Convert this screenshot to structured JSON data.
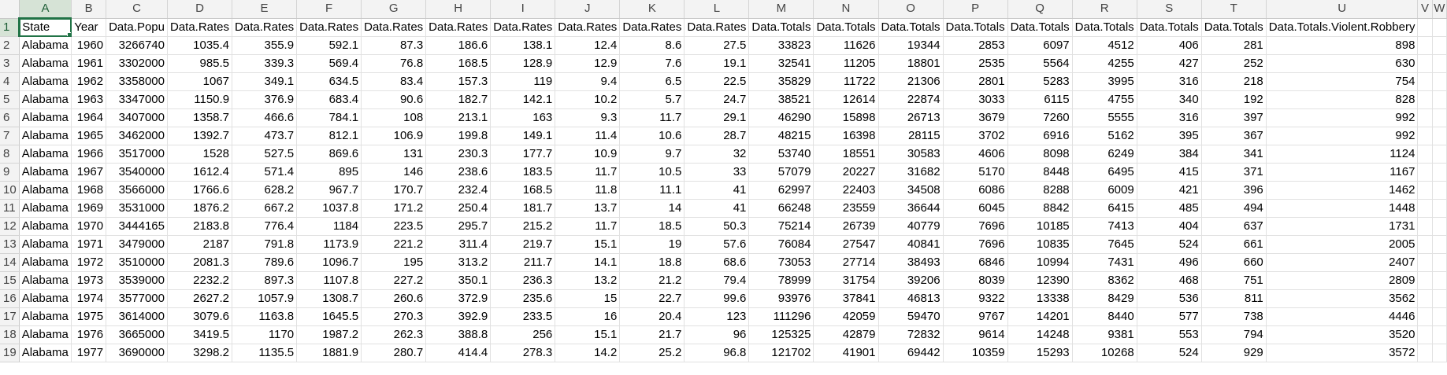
{
  "active_cell": "A1",
  "colors": {
    "selection": "#217346",
    "header_bg": "#f3f3f3",
    "gridline": "#e1e1e1"
  },
  "columns": [
    "A",
    "B",
    "C",
    "D",
    "E",
    "F",
    "G",
    "H",
    "I",
    "J",
    "K",
    "L",
    "M",
    "N",
    "O",
    "P",
    "Q",
    "R",
    "S",
    "T",
    "U",
    "V",
    "W"
  ],
  "row_numbers": [
    "1",
    "2",
    "3",
    "4",
    "5",
    "6",
    "7",
    "8",
    "9",
    "10",
    "11",
    "12",
    "13",
    "14",
    "15",
    "16",
    "17",
    "18",
    "19"
  ],
  "header_row": [
    "State",
    "Year",
    "Data.Popu",
    "Data.Rates",
    "Data.Rates",
    "Data.Rates",
    "Data.Rates",
    "Data.Rates",
    "Data.Rates",
    "Data.Rates",
    "Data.Rates",
    "Data.Rates",
    "Data.Totals",
    "Data.Totals",
    "Data.Totals",
    "Data.Totals",
    "Data.Totals",
    "Data.Totals",
    "Data.Totals",
    "Data.Totals",
    "Data.Totals.Violent.Robbery",
    "",
    ""
  ],
  "rows": [
    [
      "Alabama",
      "1960",
      "3266740",
      "1035.4",
      "355.9",
      "592.1",
      "87.3",
      "186.6",
      "138.1",
      "12.4",
      "8.6",
      "27.5",
      "33823",
      "11626",
      "19344",
      "2853",
      "6097",
      "4512",
      "406",
      "281",
      "898",
      "",
      ""
    ],
    [
      "Alabama",
      "1961",
      "3302000",
      "985.5",
      "339.3",
      "569.4",
      "76.8",
      "168.5",
      "128.9",
      "12.9",
      "7.6",
      "19.1",
      "32541",
      "11205",
      "18801",
      "2535",
      "5564",
      "4255",
      "427",
      "252",
      "630",
      "",
      ""
    ],
    [
      "Alabama",
      "1962",
      "3358000",
      "1067",
      "349.1",
      "634.5",
      "83.4",
      "157.3",
      "119",
      "9.4",
      "6.5",
      "22.5",
      "35829",
      "11722",
      "21306",
      "2801",
      "5283",
      "3995",
      "316",
      "218",
      "754",
      "",
      ""
    ],
    [
      "Alabama",
      "1963",
      "3347000",
      "1150.9",
      "376.9",
      "683.4",
      "90.6",
      "182.7",
      "142.1",
      "10.2",
      "5.7",
      "24.7",
      "38521",
      "12614",
      "22874",
      "3033",
      "6115",
      "4755",
      "340",
      "192",
      "828",
      "",
      ""
    ],
    [
      "Alabama",
      "1964",
      "3407000",
      "1358.7",
      "466.6",
      "784.1",
      "108",
      "213.1",
      "163",
      "9.3",
      "11.7",
      "29.1",
      "46290",
      "15898",
      "26713",
      "3679",
      "7260",
      "5555",
      "316",
      "397",
      "992",
      "",
      ""
    ],
    [
      "Alabama",
      "1965",
      "3462000",
      "1392.7",
      "473.7",
      "812.1",
      "106.9",
      "199.8",
      "149.1",
      "11.4",
      "10.6",
      "28.7",
      "48215",
      "16398",
      "28115",
      "3702",
      "6916",
      "5162",
      "395",
      "367",
      "992",
      "",
      ""
    ],
    [
      "Alabama",
      "1966",
      "3517000",
      "1528",
      "527.5",
      "869.6",
      "131",
      "230.3",
      "177.7",
      "10.9",
      "9.7",
      "32",
      "53740",
      "18551",
      "30583",
      "4606",
      "8098",
      "6249",
      "384",
      "341",
      "1124",
      "",
      ""
    ],
    [
      "Alabama",
      "1967",
      "3540000",
      "1612.4",
      "571.4",
      "895",
      "146",
      "238.6",
      "183.5",
      "11.7",
      "10.5",
      "33",
      "57079",
      "20227",
      "31682",
      "5170",
      "8448",
      "6495",
      "415",
      "371",
      "1167",
      "",
      ""
    ],
    [
      "Alabama",
      "1968",
      "3566000",
      "1766.6",
      "628.2",
      "967.7",
      "170.7",
      "232.4",
      "168.5",
      "11.8",
      "11.1",
      "41",
      "62997",
      "22403",
      "34508",
      "6086",
      "8288",
      "6009",
      "421",
      "396",
      "1462",
      "",
      ""
    ],
    [
      "Alabama",
      "1969",
      "3531000",
      "1876.2",
      "667.2",
      "1037.8",
      "171.2",
      "250.4",
      "181.7",
      "13.7",
      "14",
      "41",
      "66248",
      "23559",
      "36644",
      "6045",
      "8842",
      "6415",
      "485",
      "494",
      "1448",
      "",
      ""
    ],
    [
      "Alabama",
      "1970",
      "3444165",
      "2183.8",
      "776.4",
      "1184",
      "223.5",
      "295.7",
      "215.2",
      "11.7",
      "18.5",
      "50.3",
      "75214",
      "26739",
      "40779",
      "7696",
      "10185",
      "7413",
      "404",
      "637",
      "1731",
      "",
      ""
    ],
    [
      "Alabama",
      "1971",
      "3479000",
      "2187",
      "791.8",
      "1173.9",
      "221.2",
      "311.4",
      "219.7",
      "15.1",
      "19",
      "57.6",
      "76084",
      "27547",
      "40841",
      "7696",
      "10835",
      "7645",
      "524",
      "661",
      "2005",
      "",
      ""
    ],
    [
      "Alabama",
      "1972",
      "3510000",
      "2081.3",
      "789.6",
      "1096.7",
      "195",
      "313.2",
      "211.7",
      "14.1",
      "18.8",
      "68.6",
      "73053",
      "27714",
      "38493",
      "6846",
      "10994",
      "7431",
      "496",
      "660",
      "2407",
      "",
      ""
    ],
    [
      "Alabama",
      "1973",
      "3539000",
      "2232.2",
      "897.3",
      "1107.8",
      "227.2",
      "350.1",
      "236.3",
      "13.2",
      "21.2",
      "79.4",
      "78999",
      "31754",
      "39206",
      "8039",
      "12390",
      "8362",
      "468",
      "751",
      "2809",
      "",
      ""
    ],
    [
      "Alabama",
      "1974",
      "3577000",
      "2627.2",
      "1057.9",
      "1308.7",
      "260.6",
      "372.9",
      "235.6",
      "15",
      "22.7",
      "99.6",
      "93976",
      "37841",
      "46813",
      "9322",
      "13338",
      "8429",
      "536",
      "811",
      "3562",
      "",
      ""
    ],
    [
      "Alabama",
      "1975",
      "3614000",
      "3079.6",
      "1163.8",
      "1645.5",
      "270.3",
      "392.9",
      "233.5",
      "16",
      "20.4",
      "123",
      "111296",
      "42059",
      "59470",
      "9767",
      "14201",
      "8440",
      "577",
      "738",
      "4446",
      "",
      ""
    ],
    [
      "Alabama",
      "1976",
      "3665000",
      "3419.5",
      "1170",
      "1987.2",
      "262.3",
      "388.8",
      "256",
      "15.1",
      "21.7",
      "96",
      "125325",
      "42879",
      "72832",
      "9614",
      "14248",
      "9381",
      "553",
      "794",
      "3520",
      "",
      ""
    ],
    [
      "Alabama",
      "1977",
      "3690000",
      "3298.2",
      "1135.5",
      "1881.9",
      "280.7",
      "414.4",
      "278.3",
      "14.2",
      "25.2",
      "96.8",
      "121702",
      "41901",
      "69442",
      "10359",
      "15293",
      "10268",
      "524",
      "929",
      "3572",
      "",
      ""
    ]
  ]
}
